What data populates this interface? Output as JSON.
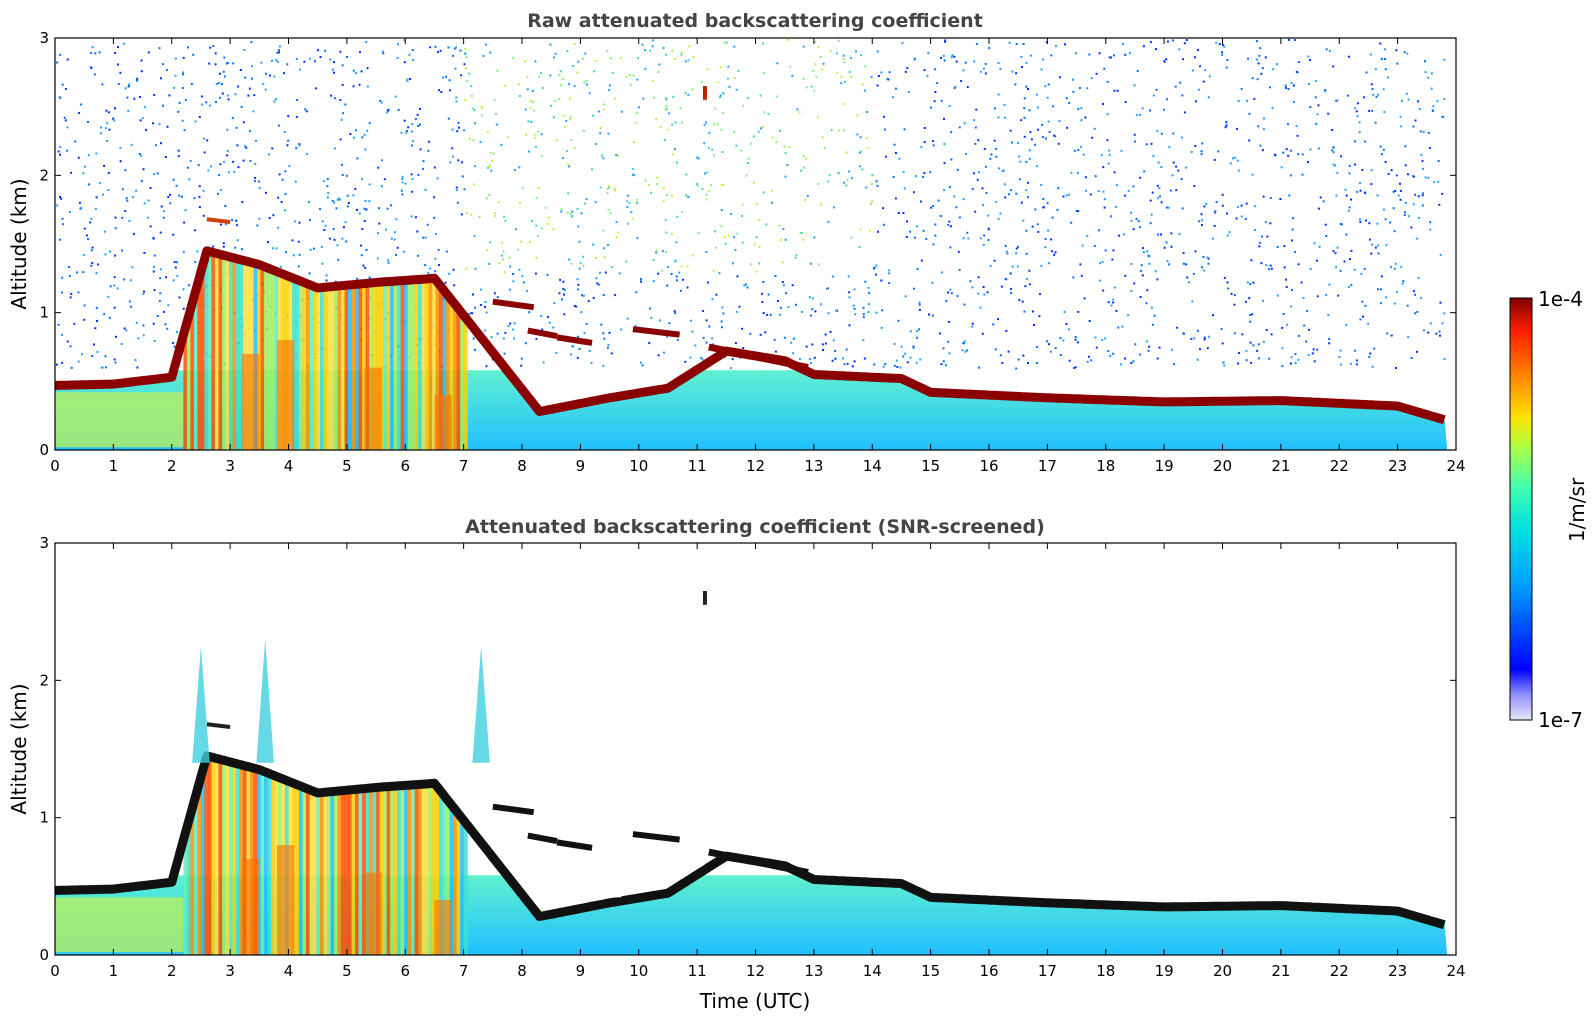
{
  "chart_data": [
    {
      "type": "heatmap",
      "title": "Raw attenuated backscattering coefficient",
      "xlabel": "",
      "ylabel": "Altitude (km)",
      "xlim": [
        0,
        24
      ],
      "ylim": [
        0,
        3
      ],
      "xticks": [
        "0",
        "1",
        "2",
        "3",
        "4",
        "5",
        "6",
        "7",
        "8",
        "9",
        "10",
        "11",
        "12",
        "13",
        "14",
        "15",
        "16",
        "17",
        "18",
        "19",
        "20",
        "21",
        "22",
        "23",
        "24"
      ],
      "yticks": [
        "0",
        "1",
        "2",
        "3"
      ],
      "screened": false,
      "cloud_base_km": [
        {
          "t": 0,
          "h": 0.47
        },
        {
          "t": 1,
          "h": 0.48
        },
        {
          "t": 2,
          "h": 0.53
        },
        {
          "t": 2.6,
          "h": 1.45
        },
        {
          "t": 3.5,
          "h": 1.35
        },
        {
          "t": 4.5,
          "h": 1.18
        },
        {
          "t": 5.5,
          "h": 1.22
        },
        {
          "t": 6.5,
          "h": 1.25
        },
        {
          "t": 8.3,
          "h": 0.28
        },
        {
          "t": 9.5,
          "h": 0.38
        },
        {
          "t": 10.5,
          "h": 0.45
        },
        {
          "t": 11.5,
          "h": 0.72
        },
        {
          "t": 12.5,
          "h": 0.65
        },
        {
          "t": 13,
          "h": 0.55
        },
        {
          "t": 14.5,
          "h": 0.52
        },
        {
          "t": 15,
          "h": 0.42
        },
        {
          "t": 17,
          "h": 0.38
        },
        {
          "t": 19,
          "h": 0.35
        },
        {
          "t": 21,
          "h": 0.36
        },
        {
          "t": 23,
          "h": 0.32
        },
        {
          "t": 23.8,
          "h": 0.22
        }
      ]
    },
    {
      "type": "heatmap",
      "title": "Attenuated backscattering coefficient (SNR-screened)",
      "xlabel": "Time (UTC)",
      "ylabel": "Altitude (km)",
      "xlim": [
        0,
        24
      ],
      "ylim": [
        0,
        3
      ],
      "xticks": [
        "0",
        "1",
        "2",
        "3",
        "4",
        "5",
        "6",
        "7",
        "8",
        "9",
        "10",
        "11",
        "12",
        "13",
        "14",
        "15",
        "16",
        "17",
        "18",
        "19",
        "20",
        "21",
        "22",
        "23",
        "24"
      ],
      "yticks": [
        "0",
        "1",
        "2",
        "3"
      ],
      "screened": true
    }
  ],
  "colorbar": {
    "min_label": "1e-7",
    "max_label": "1e-4",
    "unit_label": "1/m/sr",
    "colors": [
      "#e8e8f8",
      "#8080ff",
      "#0000ff",
      "#00a0ff",
      "#00e0e0",
      "#40ffb0",
      "#b0ff40",
      "#ffe000",
      "#ff8000",
      "#ff2000",
      "#800000"
    ]
  }
}
